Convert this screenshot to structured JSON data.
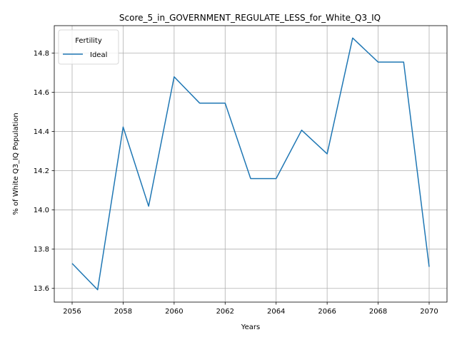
{
  "chart_data": {
    "type": "line",
    "title": "Score_5_in_GOVERNMENT_REGULATE_LESS_for_White_Q3_IQ",
    "xlabel": "Years",
    "ylabel": "% of White Q3_IQ Population",
    "x": [
      2056,
      2057,
      2058,
      2059,
      2060,
      2061,
      2062,
      2063,
      2064,
      2065,
      2066,
      2067,
      2068,
      2069,
      2070
    ],
    "series": [
      {
        "name": "Ideal",
        "color": "#1f77b4",
        "values": [
          13.727,
          13.593,
          14.423,
          14.019,
          14.679,
          14.545,
          14.545,
          14.16,
          14.16,
          14.407,
          14.286,
          14.877,
          14.754,
          14.754,
          13.71
        ]
      }
    ],
    "xlim": [
      2055.3,
      2070.7
    ],
    "ylim": [
      13.53,
      14.94
    ],
    "xticks": [
      2056,
      2058,
      2060,
      2062,
      2064,
      2066,
      2068,
      2070
    ],
    "yticks": [
      13.6,
      13.8,
      14.0,
      14.2,
      14.4,
      14.6,
      14.8
    ],
    "grid": true,
    "legend": {
      "title": "Fertility",
      "placement": "top-left"
    }
  }
}
